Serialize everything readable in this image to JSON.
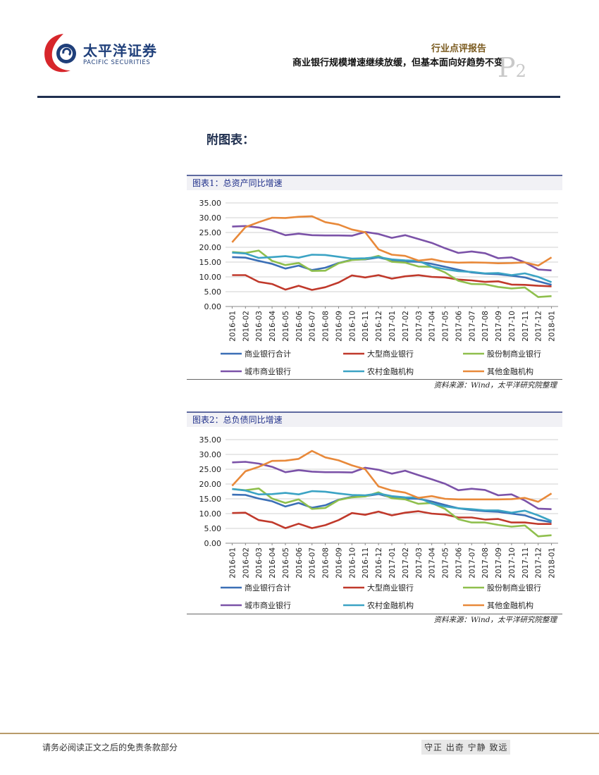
{
  "header": {
    "logo_cn": "太平洋证券",
    "logo_en": "PACIFIC SECURITIES",
    "report_type": "行业点评报告",
    "report_title": "商业银行规模增速继续放缓，但基本面向好趋势不变",
    "page_letter": "P",
    "page_number": "2"
  },
  "appendix_label": "附图表：",
  "footer": {
    "disclaimer": "请务必阅读正文之后的免责条款部分",
    "motto": "守正 出奇 宁静 致远"
  },
  "colors": {
    "commercial_total": "#3b6fb6",
    "large": "#c0392b",
    "joint_stock": "#8fbf4d",
    "city": "#7b52a8",
    "rural": "#3ba3c4",
    "other": "#e8893a"
  },
  "chart_data": [
    {
      "type": "line",
      "title": "图表1：总资产同比增速",
      "source": "资料来源：Wind，太平洋研究院整理",
      "ylim": [
        0,
        35
      ],
      "yticks": [
        "35.00",
        "30.00",
        "25.00",
        "20.00",
        "15.00",
        "10.00",
        "5.00",
        "0.00"
      ],
      "ytick_values": [
        35,
        30,
        25,
        20,
        15,
        10,
        5,
        0
      ],
      "grid": true,
      "legend_position": "bottom",
      "x": [
        "2016-01",
        "2016-02",
        "2016-03",
        "2016-04",
        "2016-05",
        "2016-06",
        "2016-07",
        "2016-08",
        "2016-09",
        "2016-10",
        "2016-11",
        "2016-12",
        "2017-01",
        "2017-02",
        "2017-03",
        "2017-04",
        "2017-05",
        "2017-06",
        "2017-07",
        "2017-08",
        "2017-09",
        "2017-10",
        "2017-11",
        "2017-12",
        "2018-01"
      ],
      "series": [
        {
          "name": "商业银行合计",
          "color": "#3b6fb6",
          "values": [
            16.7,
            16.5,
            15.4,
            14.4,
            12.8,
            13.8,
            12.3,
            13.1,
            14.7,
            15.8,
            15.9,
            16.6,
            15.5,
            15.2,
            15.1,
            14.4,
            13.4,
            12.4,
            11.5,
            11.1,
            10.9,
            10.4,
            9.8,
            8.5,
            7.3
          ]
        },
        {
          "name": "大型商业银行",
          "color": "#c0392b",
          "values": [
            10.6,
            10.6,
            8.3,
            7.6,
            5.7,
            7.0,
            5.6,
            6.5,
            8.1,
            10.5,
            9.8,
            10.6,
            9.4,
            10.2,
            10.6,
            10.0,
            9.8,
            9.1,
            8.8,
            8.3,
            8.5,
            7.4,
            7.3,
            7.0,
            6.8
          ]
        },
        {
          "name": "股份制商业银行",
          "color": "#8fbf4d",
          "values": [
            18.4,
            18.1,
            18.9,
            15.4,
            14.0,
            14.7,
            12.0,
            12.1,
            14.6,
            15.7,
            16.0,
            17.1,
            15.1,
            14.8,
            13.5,
            13.4,
            11.5,
            8.7,
            7.6,
            7.5,
            6.6,
            6.1,
            6.4,
            3.2,
            3.5
          ]
        },
        {
          "name": "城市商业银行",
          "color": "#7b52a8",
          "values": [
            27.0,
            27.2,
            26.7,
            25.7,
            24.1,
            24.6,
            24.1,
            24.0,
            24.0,
            23.9,
            25.2,
            24.5,
            23.2,
            24.1,
            22.8,
            21.5,
            19.7,
            18.1,
            18.6,
            18.0,
            16.3,
            16.6,
            14.9,
            12.5,
            12.2
          ]
        },
        {
          "name": "农村金融机构",
          "color": "#3ba3c4",
          "values": [
            18.2,
            17.9,
            16.4,
            16.7,
            17.0,
            16.5,
            17.5,
            17.4,
            16.8,
            16.2,
            16.3,
            16.7,
            15.9,
            15.6,
            15.4,
            13.5,
            12.6,
            11.9,
            11.7,
            11.2,
            11.3,
            10.6,
            11.2,
            10.0,
            8.2
          ]
        },
        {
          "name": "其他金融机构",
          "color": "#e8893a",
          "values": [
            21.7,
            26.8,
            28.5,
            30.0,
            29.9,
            30.3,
            30.5,
            28.5,
            27.7,
            26.0,
            25.1,
            19.3,
            17.5,
            17.1,
            15.5,
            16.0,
            15.1,
            14.8,
            14.9,
            14.8,
            14.6,
            14.7,
            14.9,
            13.8,
            16.6
          ]
        }
      ]
    },
    {
      "type": "line",
      "title": "图表2：总负债同比增速",
      "source": "资料来源：Wind，太平洋研究院整理",
      "ylim": [
        0,
        35
      ],
      "yticks": [
        "35.00",
        "30.00",
        "25.00",
        "20.00",
        "15.00",
        "10.00",
        "5.00",
        "0.00"
      ],
      "ytick_values": [
        35,
        30,
        25,
        20,
        15,
        10,
        5,
        0
      ],
      "grid": true,
      "legend_position": "bottom",
      "x": [
        "2016-01",
        "2016-02",
        "2016-03",
        "2016-04",
        "2016-05",
        "2016-06",
        "2016-07",
        "2016-08",
        "2016-09",
        "2016-10",
        "2016-11",
        "2016-12",
        "2017-01",
        "2017-02",
        "2017-03",
        "2017-04",
        "2017-05",
        "2017-06",
        "2017-07",
        "2017-08",
        "2017-09",
        "2017-10",
        "2017-11",
        "2017-12",
        "2018-01"
      ],
      "series": [
        {
          "name": "商业银行合计",
          "color": "#3b6fb6",
          "values": [
            16.4,
            16.3,
            15.1,
            14.2,
            12.4,
            13.6,
            12.0,
            12.8,
            14.7,
            15.7,
            15.9,
            16.6,
            15.4,
            15.1,
            15.0,
            14.1,
            12.9,
            11.8,
            11.2,
            10.8,
            10.6,
            10.0,
            9.4,
            7.9,
            7.1
          ]
        },
        {
          "name": "大型商业银行",
          "color": "#c0392b",
          "values": [
            10.2,
            10.3,
            7.8,
            7.1,
            5.1,
            6.6,
            5.1,
            6.1,
            7.8,
            10.2,
            9.6,
            10.7,
            9.4,
            10.3,
            10.8,
            10.0,
            9.7,
            8.7,
            8.7,
            8.0,
            8.2,
            7.0,
            7.0,
            6.5,
            6.5
          ]
        },
        {
          "name": "股份制商业银行",
          "color": "#8fbf4d",
          "values": [
            18.3,
            17.9,
            18.5,
            15.1,
            13.6,
            14.8,
            11.6,
            11.9,
            14.6,
            15.5,
            15.8,
            17.2,
            15.2,
            14.8,
            13.3,
            13.6,
            11.6,
            8.1,
            7.0,
            7.0,
            6.2,
            5.6,
            6.0,
            2.3,
            2.7
          ]
        },
        {
          "name": "城市商业银行",
          "color": "#7b52a8",
          "values": [
            27.3,
            27.5,
            26.9,
            25.8,
            24.0,
            24.7,
            24.2,
            24.0,
            24.0,
            23.9,
            25.5,
            24.8,
            23.5,
            24.5,
            23.0,
            21.6,
            20.1,
            17.9,
            18.4,
            18.0,
            16.2,
            16.5,
            14.4,
            11.7,
            11.5
          ]
        },
        {
          "name": "农村金融机构",
          "color": "#3ba3c4",
          "values": [
            18.3,
            17.8,
            16.5,
            16.6,
            17.0,
            16.5,
            17.6,
            17.4,
            16.8,
            16.3,
            16.2,
            16.8,
            15.9,
            15.5,
            15.4,
            13.4,
            12.4,
            11.8,
            11.5,
            11.1,
            11.1,
            10.3,
            11.0,
            9.4,
            7.5
          ]
        },
        {
          "name": "其他金融机构",
          "color": "#e8893a",
          "values": [
            19.4,
            24.3,
            25.8,
            27.8,
            27.9,
            28.5,
            31.2,
            29.0,
            28.0,
            26.3,
            25.0,
            19.2,
            17.8,
            17.1,
            15.3,
            15.9,
            15.0,
            14.8,
            14.8,
            14.8,
            14.8,
            14.9,
            15.3,
            14.0,
            16.8
          ]
        }
      ]
    }
  ]
}
